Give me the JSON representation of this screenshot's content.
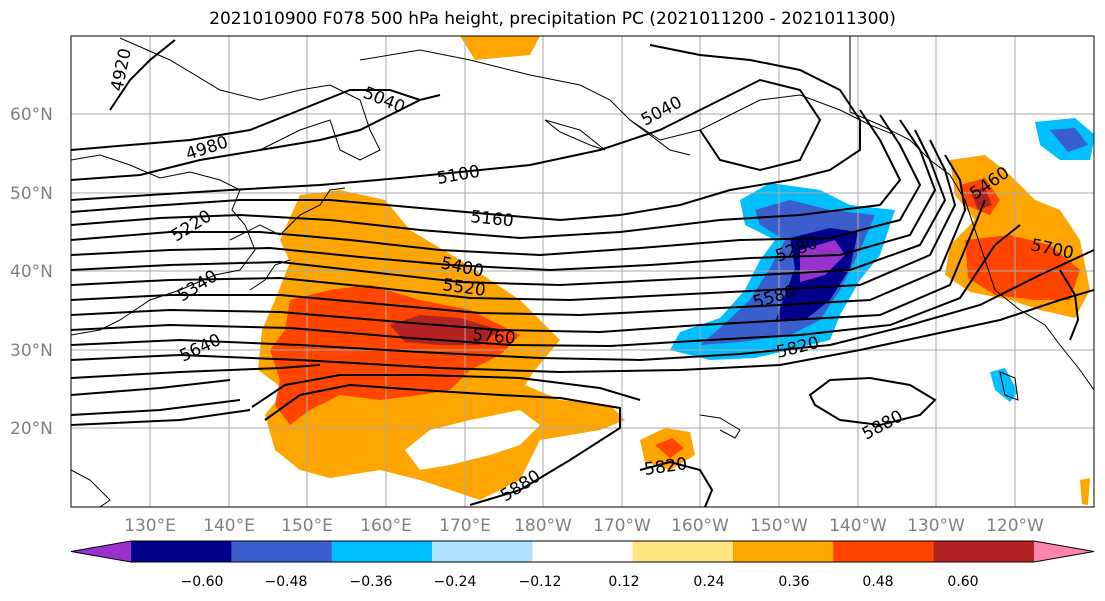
{
  "title": "2021010900 F078 500 hPa height, precipitation PC (2021011200 - 2021011300)",
  "lat_labels": [
    "60°N",
    "50°N",
    "40°N",
    "30°N",
    "20°N"
  ],
  "lon_labels": [
    "130°E",
    "140°E",
    "150°E",
    "160°E",
    "170°E",
    "180°W",
    "170°W",
    "160°W",
    "150°W",
    "140°W",
    "130°W",
    "120°W"
  ],
  "contour_labels": [
    "4920",
    "4980",
    "5040",
    "5040",
    "5100",
    "5160",
    "5220",
    "5340",
    "5400",
    "5520",
    "5460",
    "5640",
    "5760",
    "5700",
    "5580",
    "5820",
    "5880",
    "5880",
    "5820",
    "5280"
  ],
  "colorbar": {
    "colors": [
      "#9932cc",
      "#00008b",
      "#3a5fcd",
      "#00bfff",
      "#b0e2ff",
      "#ffffff",
      "#ffe680",
      "#ffa500",
      "#ff4500",
      "#b22222",
      "#ff85b0"
    ],
    "tick_labels": [
      "−0.60",
      "−0.48",
      "−0.36",
      "−0.24",
      "−0.12",
      "0.12",
      "0.24",
      "0.36",
      "0.48",
      "0.60"
    ]
  }
}
